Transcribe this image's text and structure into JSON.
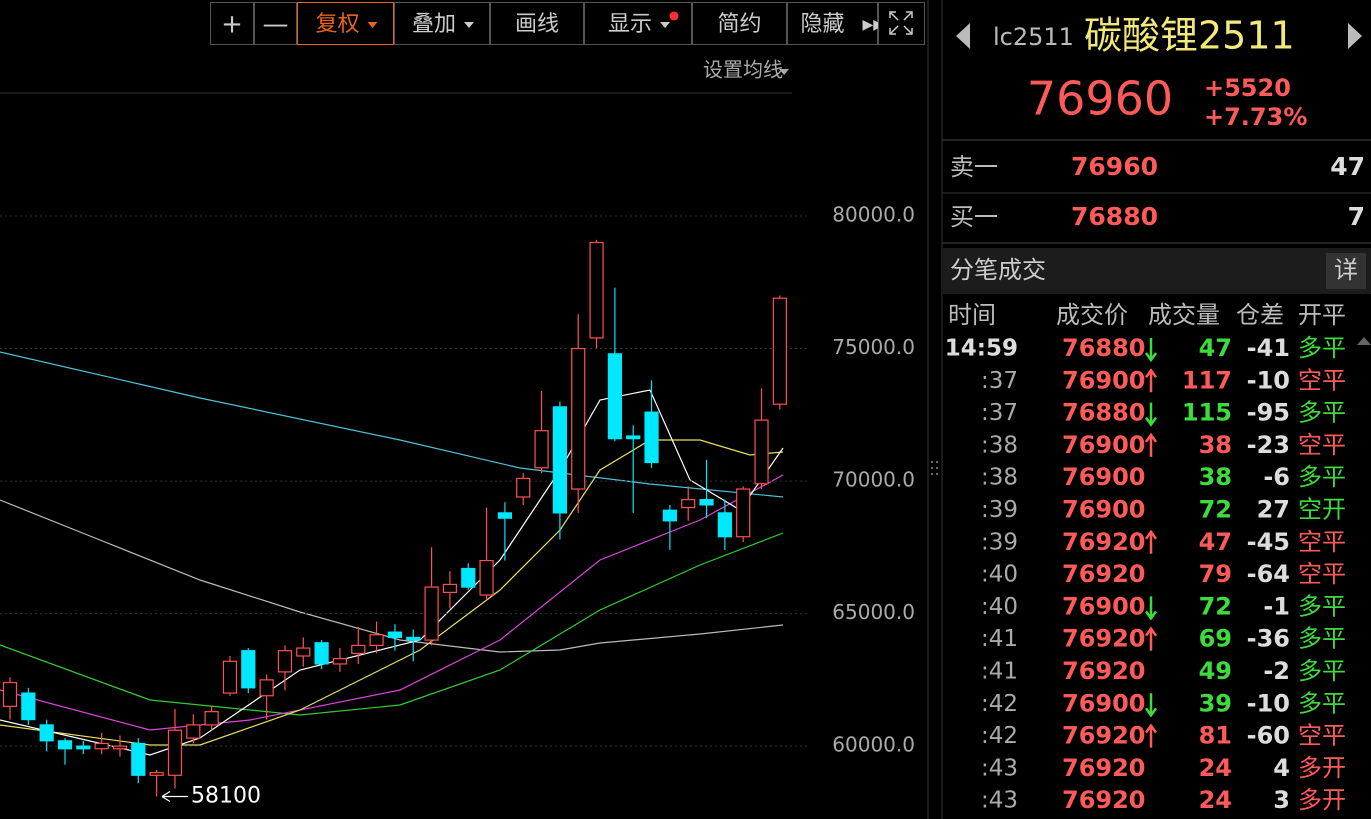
{
  "toolbar": {
    "buttons": [
      "+",
      "—",
      "复权",
      "叠加",
      "画线",
      "显示",
      "简约",
      "隐藏"
    ],
    "active": 2,
    "ma_setting": "设置均线"
  },
  "chart": {
    "type": "candlestick",
    "ylim": [
      57250,
      88150
    ],
    "yticks": [
      {
        "value": 80000,
        "label": "80000.0"
      },
      {
        "value": 75000,
        "label": "75000.0"
      },
      {
        "value": 70000,
        "label": "70000.0"
      },
      {
        "value": 65000,
        "label": "65000.0"
      },
      {
        "value": 60000,
        "label": "60000.0"
      }
    ],
    "grid": true,
    "up_color": "#ff5050",
    "down_color": "#00e8ff",
    "candles": [
      {
        "open": 61500,
        "high": 62600,
        "low": 61000,
        "close": 62400
      },
      {
        "open": 62000,
        "high": 62200,
        "low": 60800,
        "close": 61000
      },
      {
        "open": 60800,
        "high": 61000,
        "low": 59800,
        "close": 60200
      },
      {
        "open": 60200,
        "high": 60300,
        "low": 59300,
        "close": 59900
      },
      {
        "open": 60000,
        "high": 60200,
        "low": 59700,
        "close": 59900
      },
      {
        "open": 59900,
        "high": 60500,
        "low": 59700,
        "close": 60100
      },
      {
        "open": 59900,
        "high": 60400,
        "low": 59600,
        "close": 60000
      },
      {
        "open": 60100,
        "high": 60300,
        "low": 58600,
        "close": 58900
      },
      {
        "open": 58900,
        "high": 59100,
        "low": 58100,
        "close": 59000
      },
      {
        "open": 58900,
        "high": 61400,
        "low": 58400,
        "close": 60600
      },
      {
        "open": 60300,
        "high": 61200,
        "low": 60100,
        "close": 60800
      },
      {
        "open": 60800,
        "high": 61500,
        "low": 60600,
        "close": 61300
      },
      {
        "open": 62000,
        "high": 63400,
        "low": 61900,
        "close": 63200
      },
      {
        "open": 63600,
        "high": 63700,
        "low": 62000,
        "close": 62200
      },
      {
        "open": 61900,
        "high": 62700,
        "low": 61000,
        "close": 62500
      },
      {
        "open": 62800,
        "high": 63800,
        "low": 62100,
        "close": 63600
      },
      {
        "open": 63400,
        "high": 64100,
        "low": 63000,
        "close": 63700
      },
      {
        "open": 63900,
        "high": 64000,
        "low": 62900,
        "close": 63100
      },
      {
        "open": 63100,
        "high": 63700,
        "low": 62800,
        "close": 63300
      },
      {
        "open": 63500,
        "high": 64500,
        "low": 63100,
        "close": 63800
      },
      {
        "open": 63800,
        "high": 64700,
        "low": 63500,
        "close": 64200
      },
      {
        "open": 64300,
        "high": 64600,
        "low": 63600,
        "close": 64100
      },
      {
        "open": 64100,
        "high": 64400,
        "low": 63200,
        "close": 64000
      },
      {
        "open": 64000,
        "high": 67500,
        "low": 63800,
        "close": 66000
      },
      {
        "open": 65800,
        "high": 66600,
        "low": 65200,
        "close": 66100
      },
      {
        "open": 66700,
        "high": 66900,
        "low": 65900,
        "close": 66000
      },
      {
        "open": 65700,
        "high": 69000,
        "low": 65500,
        "close": 67000
      },
      {
        "open": 68800,
        "high": 69200,
        "low": 67000,
        "close": 68600
      },
      {
        "open": 69400,
        "high": 70300,
        "low": 69100,
        "close": 70100
      },
      {
        "open": 70500,
        "high": 73400,
        "low": 70300,
        "close": 71900
      },
      {
        "open": 72800,
        "high": 73000,
        "low": 67800,
        "close": 68800
      },
      {
        "open": 69700,
        "high": 76300,
        "low": 68800,
        "close": 75000
      },
      {
        "open": 75400,
        "high": 79100,
        "low": 75000,
        "close": 79000
      },
      {
        "open": 74800,
        "high": 77300,
        "low": 71500,
        "close": 71600
      },
      {
        "open": 71700,
        "high": 72100,
        "low": 68800,
        "close": 71600
      },
      {
        "open": 72600,
        "high": 73800,
        "low": 70500,
        "close": 70700
      },
      {
        "open": 68900,
        "high": 69100,
        "low": 67400,
        "close": 68500
      },
      {
        "open": 69000,
        "high": 69800,
        "low": 68500,
        "close": 69300
      },
      {
        "open": 69300,
        "high": 70800,
        "low": 68600,
        "close": 69100
      },
      {
        "open": 68800,
        "high": 69300,
        "low": 67400,
        "close": 67900
      },
      {
        "open": 67900,
        "high": 69800,
        "low": 67700,
        "close": 69700
      },
      {
        "open": 69900,
        "high": 73500,
        "low": 69700,
        "close": 72300
      },
      {
        "open": 72900,
        "high": 77000,
        "low": 72700,
        "close": 76900
      }
    ],
    "annotation": 58100
  },
  "quote": {
    "code": "lc2511",
    "name": "碳酸锂2511",
    "price": 76960,
    "change": "+5520",
    "pct": "+7.73%"
  },
  "orderbook": [
    {
      "label": "卖一",
      "price": 76960,
      "volume": 47
    },
    {
      "label": "买一",
      "price": 76880,
      "volume": 7
    }
  ],
  "ticks": {
    "title": "分笔成交",
    "detail": "详",
    "columns": [
      "时间",
      "成交价",
      "成交量",
      "仓差",
      "开平"
    ],
    "rows": [
      {
        "time": "14:59",
        "price": 76880,
        "dir": "down",
        "volume": 47,
        "diff": -41,
        "type": "多平",
        "side": "sell"
      },
      {
        "time": ":37",
        "price": 76900,
        "dir": "up",
        "volume": 117,
        "diff": -10,
        "type": "空平",
        "side": "buy"
      },
      {
        "time": ":37",
        "price": 76880,
        "dir": "down",
        "volume": 115,
        "diff": -95,
        "type": "多平",
        "side": "sell"
      },
      {
        "time": ":38",
        "price": 76900,
        "dir": "up",
        "volume": 38,
        "diff": -23,
        "type": "空平",
        "side": "buy"
      },
      {
        "time": ":38",
        "price": 76900,
        "volume": 38,
        "diff": -6,
        "type": "多平",
        "side": "sell"
      },
      {
        "time": ":39",
        "price": 76900,
        "volume": 72,
        "diff": 27,
        "type": "空开",
        "side": "sell"
      },
      {
        "time": ":39",
        "price": 76920,
        "dir": "up",
        "volume": 47,
        "diff": -45,
        "type": "空平",
        "side": "buy"
      },
      {
        "time": ":40",
        "price": 76920,
        "volume": 79,
        "diff": -64,
        "type": "空平",
        "side": "buy"
      },
      {
        "time": ":40",
        "price": 76900,
        "dir": "down",
        "volume": 72,
        "diff": -1,
        "type": "多平",
        "side": "sell"
      },
      {
        "time": ":41",
        "price": 76920,
        "dir": "up",
        "volume": 69,
        "diff": -36,
        "type": "多平",
        "side": "sell"
      },
      {
        "time": ":41",
        "price": 76920,
        "volume": 49,
        "diff": -2,
        "type": "多平",
        "side": "sell"
      },
      {
        "time": ":42",
        "price": 76900,
        "dir": "down",
        "volume": 39,
        "diff": -10,
        "type": "多平",
        "side": "sell"
      },
      {
        "time": ":42",
        "price": 76920,
        "dir": "up",
        "volume": 81,
        "diff": -60,
        "type": "空平",
        "side": "buy"
      },
      {
        "time": ":43",
        "price": 76920,
        "volume": 24,
        "diff": 4,
        "type": "多开",
        "side": "buy"
      },
      {
        "time": ":43",
        "price": 76920,
        "volume": 24,
        "diff": 3,
        "type": "多开",
        "side": "buy"
      }
    ]
  }
}
